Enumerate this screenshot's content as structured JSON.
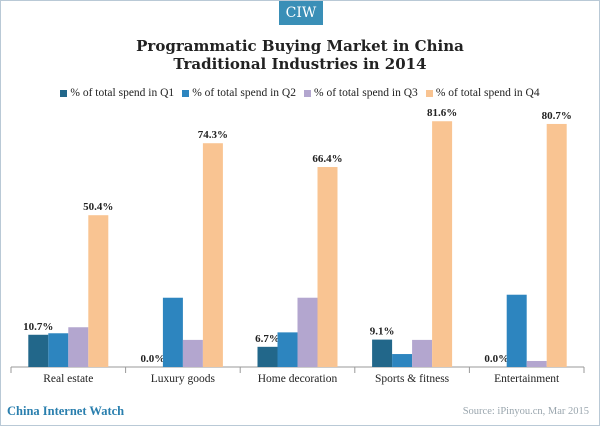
{
  "badge": "CIW",
  "footer": {
    "brand": "China Internet Watch",
    "source": "Source: iPinyou.cn,  Mar 2015"
  },
  "colors": {
    "q1": "#22678a",
    "q2": "#2d85bf",
    "q3": "#b3a6cf",
    "q4": "#f9c492"
  },
  "chart_data": {
    "type": "bar",
    "title": [
      "Programmatic Buying Market in China",
      "Traditional  Industries in 2014"
    ],
    "categories": [
      "Real estate",
      "Luxury goods",
      "Home decoration",
      "Sports & fitness",
      "Entertainment"
    ],
    "series": [
      {
        "name": "% of total spend in Q1",
        "values": [
          10.7,
          0.0,
          6.7,
          9.1,
          0.0
        ]
      },
      {
        "name": "% of total spend in Q2",
        "values": [
          11.2,
          23.0,
          11.5,
          4.3,
          24.0
        ]
      },
      {
        "name": "% of total spend in Q3",
        "values": [
          13.2,
          9.0,
          23.0,
          9.0,
          2.0
        ]
      },
      {
        "name": "% of total spend in Q4",
        "values": [
          50.4,
          74.3,
          66.4,
          81.6,
          80.7
        ]
      }
    ],
    "data_labels": [
      [
        "10.7%",
        "",
        "",
        "50.4%"
      ],
      [
        "0.0%",
        "",
        "",
        "74.3%"
      ],
      [
        "6.7%",
        "",
        "",
        "66.4%"
      ],
      [
        "9.1%",
        "",
        "",
        "81.6%"
      ],
      [
        "0.0%",
        "",
        "",
        "80.7%"
      ]
    ],
    "ylim": [
      0,
      85
    ],
    "grid": false,
    "legend_position": "top",
    "xlabel": "",
    "ylabel": ""
  }
}
